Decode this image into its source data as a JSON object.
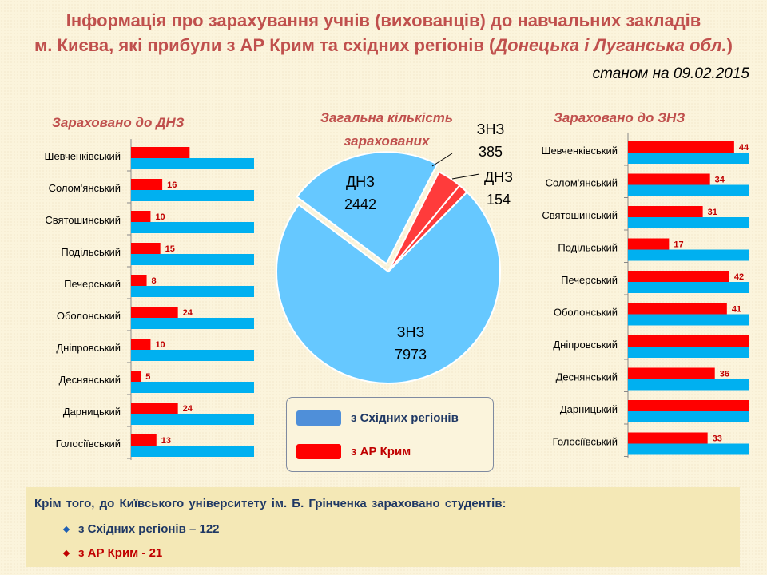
{
  "header": {
    "title_line1": "Інформація про зарахування учнів (вихованців) до навчальних закладів",
    "title_line2_start": "м. Києва, які прибули з АР Крим та східних регіонів (",
    "title_line2_italic": "Донецька і Луганська обл.",
    "title_line2_end": ")",
    "date": "станом на 09.02.2015"
  },
  "colors": {
    "title": "#c0504d",
    "crimea": "#ff0000",
    "east": "#00b0f0",
    "pie_east": "#66c8ff",
    "pie_crimea": "#ff3b3b",
    "legend_east": "#4f8fd9"
  },
  "chart_data": [
    {
      "type": "bar",
      "title": "Зараховано до ДНЗ",
      "categories": [
        "Шевченківський",
        "Солом'янський",
        "Святошинський",
        "Подільський",
        "Печерський",
        "Оболонський",
        "Дніпровський",
        "Деснянський",
        "Дарницький",
        "Голосіївський"
      ],
      "series": [
        {
          "name": "з АР Крим",
          "values": [
            30,
            16,
            10,
            15,
            8,
            24,
            10,
            5,
            24,
            13
          ],
          "labels": [
            "",
            "16",
            "10",
            "15",
            "8",
            "24",
            "10",
            "5",
            "24",
            "13"
          ]
        },
        {
          "name": "з Східних регіонів",
          "values": [
            63,
            63,
            63,
            63,
            63,
            63,
            63,
            63,
            63,
            63
          ]
        }
      ],
      "xlim": [
        0,
        63
      ]
    },
    {
      "type": "pie",
      "title": "Загальна кількість зарахованих",
      "slices": [
        {
          "label": "ЗНЗ",
          "value": 7973,
          "group": "з Східних регіонів"
        },
        {
          "label": "ДНЗ",
          "value": 2442,
          "group": "з Східних регіонів"
        },
        {
          "label": "ЗНЗ",
          "value": 385,
          "group": "з АР Крим"
        },
        {
          "label": "ДНЗ",
          "value": 154,
          "group": "з АР Крим"
        }
      ]
    },
    {
      "type": "bar",
      "title": "Зараховано до ЗНЗ",
      "categories": [
        "Шевченківський",
        "Солом'янський",
        "Святошинський",
        "Подільський",
        "Печерський",
        "Оболонський",
        "Дніпровський",
        "Деснянський",
        "Дарницький",
        "Голосіївський"
      ],
      "series": [
        {
          "name": "з АР Крим",
          "values": [
            44,
            34,
            31,
            17,
            42,
            41,
            50,
            36,
            50,
            33
          ],
          "labels": [
            "44",
            "34",
            "31",
            "17",
            "42",
            "41",
            "",
            "36",
            "",
            "33"
          ]
        },
        {
          "name": "з Східних регіонів",
          "values": [
            50,
            50,
            50,
            50,
            50,
            50,
            50,
            50,
            50,
            50
          ]
        }
      ],
      "xlim": [
        0,
        50
      ]
    }
  ],
  "legend": {
    "east": "з Східних регіонів",
    "crimea": "з АР Крим"
  },
  "note": {
    "heading": "Крім того, до Київського університету ім. Б. Грінченка зараховано студентів:",
    "east": "з Східних регіонів – 122",
    "crimea": "з АР Крим - 21"
  }
}
